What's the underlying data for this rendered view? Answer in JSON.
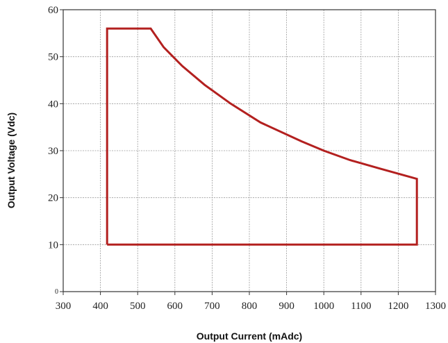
{
  "chart_data": {
    "type": "line",
    "xlabel": "Output Current (mAdc)",
    "ylabel": "Output Voltage (Vdc)",
    "xlim": [
      300,
      1300
    ],
    "ylim": [
      0,
      60
    ],
    "x_ticks": [
      300,
      400,
      500,
      600,
      700,
      800,
      900,
      1000,
      1100,
      1200,
      1300
    ],
    "y_ticks": [
      0,
      10,
      20,
      30,
      40,
      50,
      60
    ],
    "grid": true,
    "series": [
      {
        "color": "#b3201f",
        "points": [
          [
            418,
            10
          ],
          [
            418,
            56
          ],
          [
            535,
            56
          ],
          [
            570,
            52
          ],
          [
            620,
            48
          ],
          [
            680,
            44
          ],
          [
            750,
            40
          ],
          [
            830,
            36
          ],
          [
            940,
            32
          ],
          [
            1000,
            30
          ],
          [
            1070,
            28
          ],
          [
            1150,
            26.2
          ],
          [
            1250,
            24
          ],
          [
            1250,
            10
          ],
          [
            418,
            10
          ]
        ]
      }
    ]
  }
}
